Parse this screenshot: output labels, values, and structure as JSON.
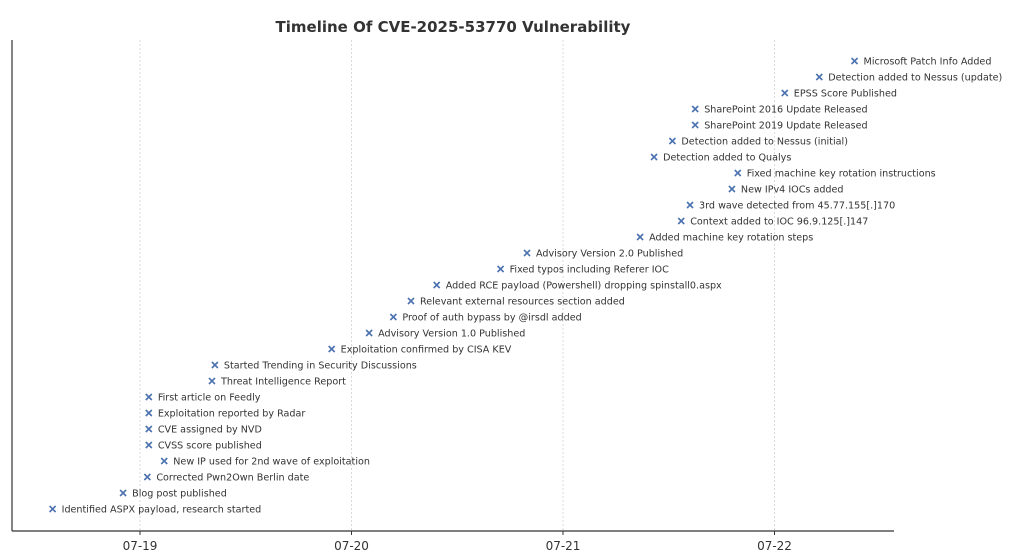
{
  "chart_data": {
    "type": "scatter",
    "title": "Timeline Of CVE-2025-53770 Vulnerability",
    "xlabel": "",
    "ylabel": "",
    "x_axis": {
      "type": "datetime",
      "ticks": [
        "07-19",
        "07-20",
        "07-21",
        "07-22"
      ],
      "range": [
        "2025-07-18T12:20",
        "2025-07-22T14:40"
      ]
    },
    "grid": "vertical",
    "marker": "x",
    "marker_color": "#4c72b0",
    "points": [
      {
        "x": "2025-07-18T14:05",
        "label": "Identified ASPX payload, research started"
      },
      {
        "x": "2025-07-18T22:05",
        "label": "Blog post published"
      },
      {
        "x": "2025-07-19T00:50",
        "label": "Corrected Pwn2Own Berlin date"
      },
      {
        "x": "2025-07-19T02:45",
        "label": "New IP used for 2nd wave of exploitation"
      },
      {
        "x": "2025-07-19T01:00",
        "label": "CVSS score published"
      },
      {
        "x": "2025-07-19T01:00",
        "label": "CVE assigned by NVD"
      },
      {
        "x": "2025-07-19T01:00",
        "label": "Exploitation reported by Radar"
      },
      {
        "x": "2025-07-19T01:00",
        "label": "First article on Feedly"
      },
      {
        "x": "2025-07-19T08:10",
        "label": "Threat Intelligence Report"
      },
      {
        "x": "2025-07-19T08:30",
        "label": "Started Trending in Security Discussions"
      },
      {
        "x": "2025-07-19T21:45",
        "label": "Exploitation confirmed by CISA KEV"
      },
      {
        "x": "2025-07-20T02:00",
        "label": "Advisory Version 1.0 Published"
      },
      {
        "x": "2025-07-20T04:45",
        "label": "Proof of auth bypass by @irsdl added"
      },
      {
        "x": "2025-07-20T06:45",
        "label": "Relevant external resources section added"
      },
      {
        "x": "2025-07-20T09:40",
        "label": "Added RCE payload (Powershell) dropping spinstall0.aspx"
      },
      {
        "x": "2025-07-20T16:55",
        "label": "Fixed typos including Referer IOC"
      },
      {
        "x": "2025-07-20T19:55",
        "label": "Advisory Version 2.0 Published"
      },
      {
        "x": "2025-07-21T08:45",
        "label": "Added machine key rotation steps"
      },
      {
        "x": "2025-07-21T13:25",
        "label": "Context added to IOC 96.9.125[.]147"
      },
      {
        "x": "2025-07-21T14:25",
        "label": "3rd wave detected from 45.77.155[.]170"
      },
      {
        "x": "2025-07-21T19:10",
        "label": "New IPv4 IOCs added"
      },
      {
        "x": "2025-07-21T19:50",
        "label": "Fixed machine key rotation instructions"
      },
      {
        "x": "2025-07-21T10:20",
        "label": "Detection added to Qualys"
      },
      {
        "x": "2025-07-21T12:25",
        "label": "Detection added to Nessus (initial)"
      },
      {
        "x": "2025-07-21T15:00",
        "label": "SharePoint 2019 Update Released"
      },
      {
        "x": "2025-07-21T15:00",
        "label": "SharePoint 2016 Update Released"
      },
      {
        "x": "2025-07-22T01:10",
        "label": "EPSS Score Published"
      },
      {
        "x": "2025-07-22T05:05",
        "label": "Detection added to Nessus (update)"
      },
      {
        "x": "2025-07-22T09:05",
        "label": "Microsoft Patch Info Added"
      }
    ]
  }
}
